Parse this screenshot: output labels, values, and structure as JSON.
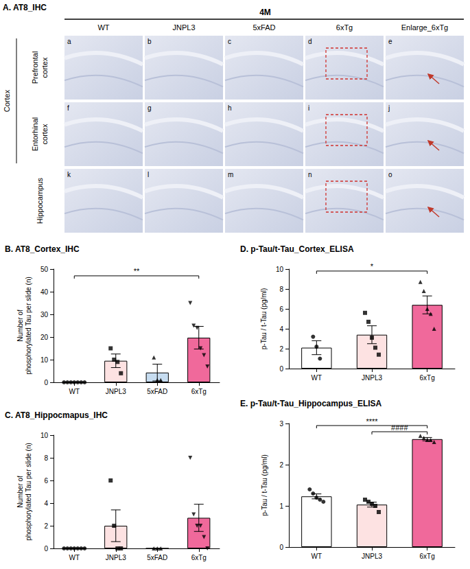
{
  "panel_a": {
    "title": "A. AT8_IHC",
    "timepoint": "4M",
    "columns": [
      "WT",
      "JNPL3",
      "5xFAD",
      "6xTg",
      "Enlarge_6xTg"
    ],
    "group_label": "Cortex",
    "rows": [
      {
        "label": "Prefrontal cortex",
        "in_group": true,
        "panels": [
          "a",
          "b",
          "c",
          "d",
          "e"
        ]
      },
      {
        "label": "Entorhinal cortex",
        "in_group": true,
        "panels": [
          "f",
          "g",
          "h",
          "i",
          "j"
        ]
      },
      {
        "label": "Hippocampus",
        "in_group": false,
        "panels": [
          "k",
          "l",
          "m",
          "n",
          "o"
        ]
      }
    ]
  },
  "chart_data": [
    {
      "type": "bar",
      "title": "B. AT8_Cortex_IHC",
      "y_label": "Number of\nphosphorylated Tau per slide (n)",
      "categories": [
        "WT",
        "JNPL3",
        "5xFAD",
        "6xTg"
      ],
      "values": [
        0,
        9.5,
        4.3,
        19.7
      ],
      "errors": [
        0,
        3.0,
        3.7,
        5.0
      ],
      "points": [
        [
          0,
          0,
          0,
          0,
          0,
          0,
          0
        ],
        [
          15,
          10,
          9,
          4
        ],
        [
          11,
          1,
          1
        ],
        [
          35,
          25,
          24,
          15,
          12,
          7
        ]
      ],
      "colors": [
        "#ffffff",
        "#fde2e2",
        "#c6dcf0",
        "#f0699b"
      ],
      "markers": [
        "circle",
        "square",
        "triangle",
        "triangle-down"
      ],
      "ylim": [
        0,
        50
      ],
      "yticks": [
        0,
        10,
        20,
        30,
        40,
        50
      ],
      "grid": false,
      "annotations": [
        {
          "text": "**",
          "from": "WT",
          "to": "6xTg",
          "y": 47
        }
      ]
    },
    {
      "type": "bar",
      "title": "C. AT8_Hippocmapus_IHC",
      "y_label": "Number of\nphosphorylated Tau per slide (n)",
      "categories": [
        "WT",
        "JNPL3",
        "5xFAD",
        "6xTg"
      ],
      "values": [
        0,
        2.0,
        0,
        2.7
      ],
      "errors": [
        0,
        1.4,
        0,
        1.2
      ],
      "points": [
        [
          0,
          0,
          0,
          0,
          0,
          0,
          0
        ],
        [
          6,
          2,
          0,
          0
        ],
        [
          0,
          0,
          0
        ],
        [
          8,
          3,
          2,
          2,
          1,
          0
        ]
      ],
      "colors": [
        "#ffffff",
        "#fde2e2",
        "#c6dcf0",
        "#f0699b"
      ],
      "markers": [
        "circle",
        "square",
        "triangle",
        "triangle-down"
      ],
      "ylim": [
        0,
        10
      ],
      "yticks": [
        0,
        2,
        4,
        6,
        8,
        10
      ],
      "grid": false,
      "annotations": []
    },
    {
      "type": "bar",
      "title": "D. p-Tau/t-Tau_Cortex_ELISA",
      "y_label": "p-Tau / t-Tau (pg/ml)",
      "categories": [
        "WT",
        "JNPL3",
        "6xTg"
      ],
      "values": [
        2.1,
        3.4,
        6.4
      ],
      "errors": [
        0.7,
        0.9,
        0.9
      ],
      "points": [
        [
          3.2,
          2.2,
          1.0
        ],
        [
          5.6,
          4.7,
          3.1,
          2.1,
          1.4
        ],
        [
          8.7,
          7.8,
          6.0,
          5.5,
          4.0
        ]
      ],
      "colors": [
        "#ffffff",
        "#fde2e2",
        "#f0699b"
      ],
      "markers": [
        "circle",
        "square",
        "triangle"
      ],
      "ylim": [
        0,
        10
      ],
      "yticks": [
        0,
        2,
        4,
        6,
        8,
        10
      ],
      "grid": false,
      "annotations": [
        {
          "text": "*",
          "from": "WT",
          "to": "6xTg",
          "y": 9.8
        }
      ]
    },
    {
      "type": "bar",
      "title": "E. p-Tau/t-Tau_Hippocampus_ELISA",
      "y_label": "p-Tau / t-Tau (pg/ml)",
      "categories": [
        "WT",
        "JNPL3",
        "6xTg"
      ],
      "values": [
        1.23,
        1.03,
        2.62
      ],
      "errors": [
        0.06,
        0.06,
        0.04
      ],
      "points": [
        [
          1.4,
          1.3,
          1.2,
          1.15,
          1.1
        ],
        [
          1.15,
          1.1,
          1.05,
          1.0,
          0.85
        ],
        [
          2.7,
          2.65,
          2.6,
          2.6,
          2.55
        ]
      ],
      "colors": [
        "#ffffff",
        "#fde2e2",
        "#f0699b"
      ],
      "markers": [
        "circle",
        "square",
        "triangle"
      ],
      "ylim": [
        0,
        3
      ],
      "yticks": [
        0,
        1,
        2,
        3
      ],
      "grid": false,
      "annotations": [
        {
          "text": "****",
          "from": "WT",
          "to": "6xTg",
          "y": 2.95
        },
        {
          "text": "####",
          "from": "JNPL3",
          "to": "6xTg",
          "y": 2.8
        }
      ]
    }
  ]
}
